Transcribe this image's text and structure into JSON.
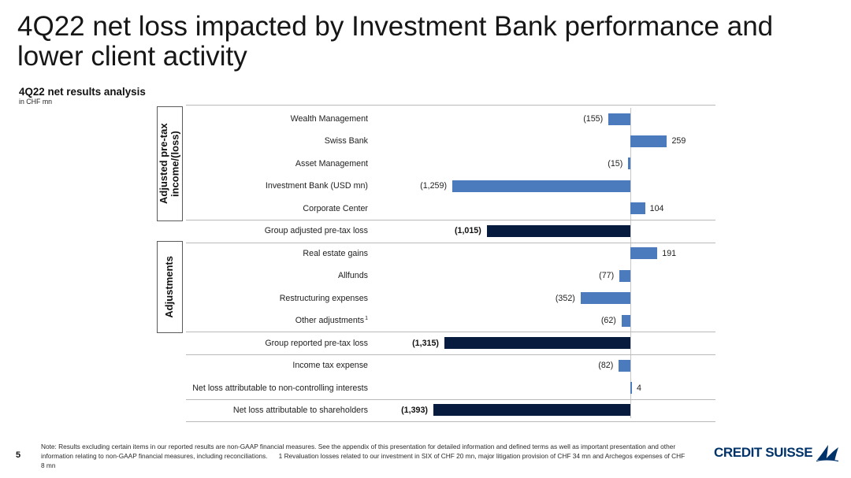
{
  "slide": {
    "title": "4Q22 net loss impacted by Investment Bank performance and lower client activity",
    "page_number": "5"
  },
  "chart_data": {
    "type": "bar",
    "orientation": "horizontal",
    "title": "4Q22 net results analysis",
    "subtitle": "in CHF mn",
    "grid": false,
    "groups": [
      {
        "label": "Adjusted pre-tax income/(loss)",
        "row_range": [
          0,
          4
        ]
      },
      {
        "label": "Adjustments",
        "row_range": [
          6,
          9
        ]
      }
    ],
    "rows": [
      {
        "category": "Wealth Management",
        "value": -155,
        "value_label": "(155)",
        "is_total": false
      },
      {
        "category": "Swiss Bank",
        "value": 259,
        "value_label": "259",
        "is_total": false
      },
      {
        "category": "Asset Management",
        "value": -15,
        "value_label": "(15)",
        "is_total": false
      },
      {
        "category": "Investment Bank (USD mn)",
        "value": -1259,
        "value_label": "(1,259)",
        "is_total": false
      },
      {
        "category": "Corporate Center",
        "value": 104,
        "value_label": "104",
        "is_total": false
      },
      {
        "category": "Group adjusted pre-tax loss",
        "value": -1015,
        "value_label": "(1,015)",
        "is_total": true
      },
      {
        "category": "Real estate gains",
        "value": 191,
        "value_label": "191",
        "is_total": false
      },
      {
        "category": "Allfunds",
        "value": -77,
        "value_label": "(77)",
        "is_total": false
      },
      {
        "category": "Restructuring expenses",
        "value": -352,
        "value_label": "(352)",
        "is_total": false
      },
      {
        "category": "Other adjustments",
        "footnote_ref": "1",
        "value": -62,
        "value_label": "(62)",
        "is_total": false
      },
      {
        "category": "Group reported pre-tax loss",
        "value": -1315,
        "value_label": "(1,315)",
        "is_total": true
      },
      {
        "category": "Income tax expense",
        "value": -82,
        "value_label": "(82)",
        "is_total": false
      },
      {
        "category": "Net loss attributable to non-controlling interests",
        "value": 4,
        "value_label": "4",
        "is_total": false
      },
      {
        "category": "Net loss attributable to shareholders",
        "value": -1393,
        "value_label": "(1,393)",
        "is_total": true
      }
    ],
    "colors": {
      "component_bar": "#4b7bbd",
      "total_bar": "#071b3f"
    }
  },
  "footer": {
    "note": "Note: Results excluding certain items in our reported results are non-GAAP financial measures. See the appendix of this presentation for detailed information and defined terms as well as important presentation and other information relating to non-GAAP financial measures, including reconciliations.",
    "footnote_number": "1",
    "footnote": "Revaluation losses related to our investment in SIX of CHF 20 mn, major litigation provision of CHF 34 mn and Archegos expenses of CHF 8 mn"
  },
  "brand": {
    "logo_text": "CREDIT SUISSE",
    "logo_icon": "sails-icon",
    "color": "#00336a"
  }
}
